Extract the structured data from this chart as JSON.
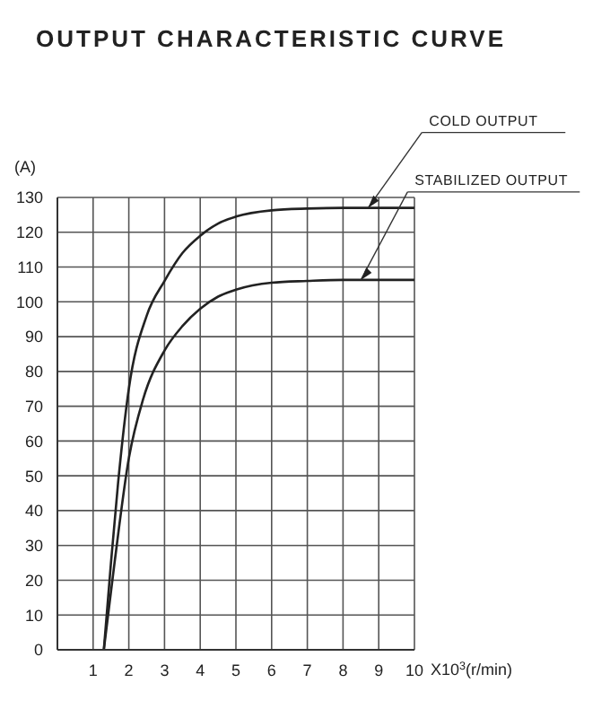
{
  "chart_data": {
    "type": "line",
    "title": "OUTPUT CHARACTERISTIC CURVE",
    "xlabel": "X10$^{3}$(r/min)",
    "ylabel": "(A)",
    "series": [
      {
        "color": "#222222",
        "x": [
          1.3,
          1.5,
          1.7,
          2,
          2.5,
          3,
          3.5,
          4,
          4.5,
          5,
          6,
          7,
          8,
          10
        ],
        "values": [
          0,
          25,
          48,
          75,
          96,
          106,
          114,
          119,
          122.5,
          124.5,
          126.3,
          126.8,
          127,
          127
        ]
      },
      {
        "color": "#222222",
        "x": [
          1.3,
          1.6,
          2,
          2.4,
          3,
          3.5,
          4,
          4.5,
          5,
          6,
          7,
          8,
          10
        ],
        "values": [
          0,
          25,
          55,
          72,
          86,
          93,
          98,
          101.5,
          103.5,
          105.5,
          106,
          106.3,
          106.3
        ]
      }
    ],
    "annotations": [
      {
        "text": "COLD OUTPUT",
        "x": 8.7,
        "y": 127
      },
      {
        "text": "STABILIZED OUTPUT",
        "x": 8.5,
        "y": 106.3
      }
    ],
    "xlim": [
      0,
      10
    ],
    "xticks": [
      1,
      2,
      3,
      4,
      5,
      6,
      7,
      8,
      9,
      10
    ],
    "ylim": [
      0,
      130
    ],
    "yticks": [
      0,
      10,
      20,
      30,
      40,
      50,
      60,
      70,
      80,
      90,
      100,
      110,
      120,
      130
    ],
    "grid": true,
    "marker": "none",
    "line_style": "solid"
  }
}
